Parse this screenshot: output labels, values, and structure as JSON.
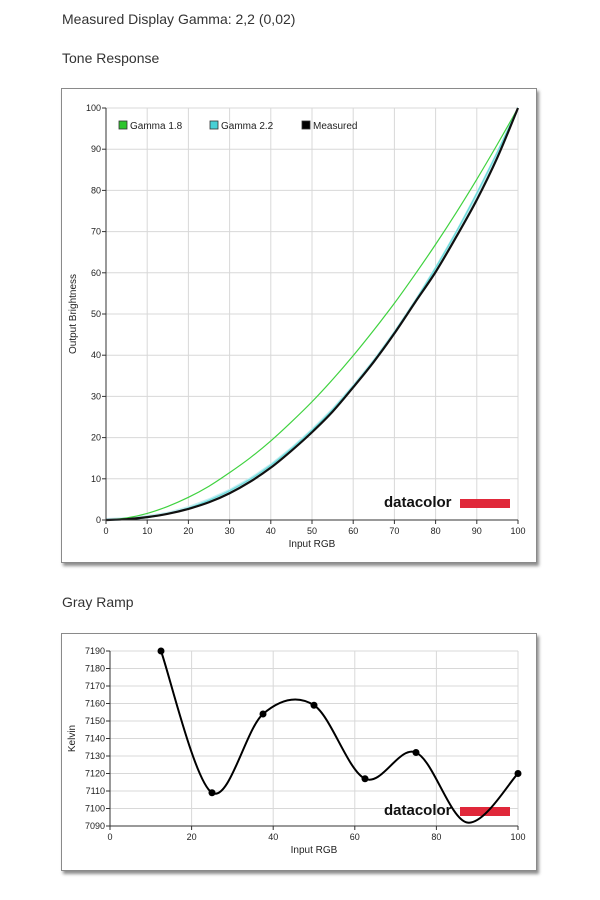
{
  "page": {
    "title": "Measured Display Gamma: 2,2 (0,02)"
  },
  "sections": {
    "tone_heading": "Tone Response",
    "gray_heading": "Gray Ramp"
  },
  "logo_text": "datacolor",
  "colors": {
    "gamma18": "#3fd23f",
    "gamma22": "#6fdcdc",
    "gamma22_fill": "#c6eef2",
    "measured": "#111111",
    "grid": "#d8d8d8",
    "logo_bar": "#e0283a",
    "legend_g18_fill": "#2ec52e",
    "legend_g22_fill": "#48d0d6",
    "legend_meas_fill": "#000000"
  },
  "chart_data": [
    {
      "type": "line",
      "xlabel": "Input RGB",
      "ylabel": "Output Brightness",
      "xlim": [
        0,
        100
      ],
      "ylim": [
        0,
        100
      ],
      "xticks": [
        "0",
        "10",
        "20",
        "30",
        "40",
        "50",
        "60",
        "70",
        "80",
        "90",
        "100"
      ],
      "yticks": [
        "0",
        "10",
        "20",
        "30",
        "40",
        "50",
        "60",
        "70",
        "80",
        "90",
        "100"
      ],
      "grid": true,
      "legend": "top-left",
      "x": [
        0,
        5,
        10,
        15,
        20,
        25,
        30,
        35,
        40,
        45,
        50,
        55,
        60,
        65,
        70,
        75,
        80,
        85,
        90,
        95,
        100
      ],
      "series": [
        {
          "name": "Gamma 1.8",
          "values": [
            0,
            0.5,
            1.6,
            3.3,
            5.5,
            8.2,
            11.5,
            15.1,
            19.2,
            23.8,
            28.7,
            34.1,
            39.9,
            46.1,
            52.6,
            59.6,
            66.9,
            74.6,
            82.7,
            91.2,
            100
          ]
        },
        {
          "name": "Gamma 2.2",
          "values": [
            0,
            0.1,
            0.6,
            1.5,
            2.9,
            4.8,
            7.1,
            9.9,
            13.3,
            17.3,
            21.8,
            26.8,
            32.5,
            38.7,
            45.6,
            53.1,
            61.2,
            69.9,
            79.3,
            89.3,
            100
          ]
        },
        {
          "name": "Measured",
          "values": [
            0,
            0.2,
            0.7,
            1.5,
            2.7,
            4.3,
            6.5,
            9.3,
            12.7,
            16.8,
            21.3,
            26.3,
            32.2,
            38.4,
            45.3,
            52.8,
            60.2,
            68.7,
            77.7,
            88.0,
            100
          ]
        }
      ]
    },
    {
      "type": "line",
      "xlabel": "Input RGB",
      "ylabel": "Kelvin",
      "xlim": [
        0,
        100
      ],
      "ylim": [
        7090,
        7190
      ],
      "xticks": [
        "0",
        "20",
        "40",
        "60",
        "80",
        "100"
      ],
      "yticks": [
        "7090",
        "7100",
        "7110",
        "7120",
        "7130",
        "7140",
        "7150",
        "7160",
        "7170",
        "7180",
        "7190"
      ],
      "grid": true,
      "x": [
        12.5,
        25,
        37.5,
        50,
        62.5,
        75,
        87.5,
        100
      ],
      "values": [
        7190,
        7109,
        7154,
        7159,
        7117,
        7132,
        7092,
        7120
      ]
    }
  ]
}
